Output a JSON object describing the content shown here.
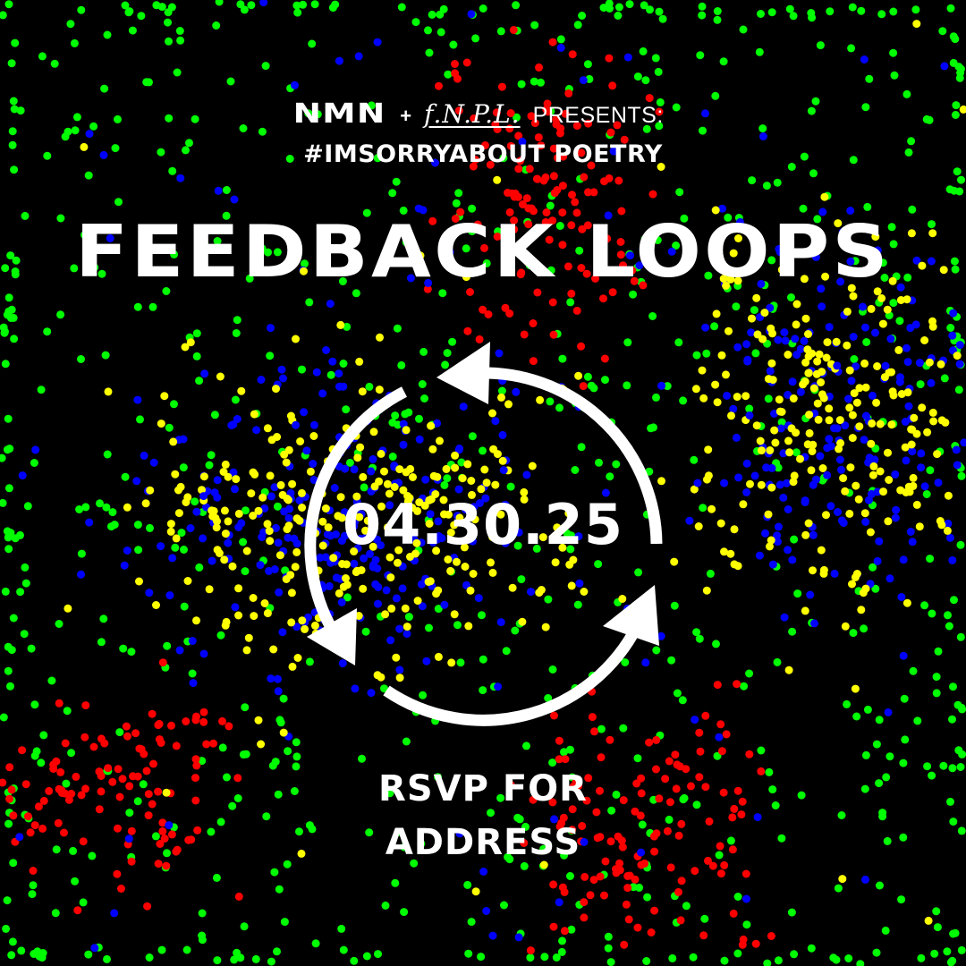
{
  "header": {
    "logo_nmn": "NMN",
    "plus": "+",
    "logo_fnpl": "f.N.P.L.",
    "presents": "PRESENTS:",
    "hashtag": "#IMSORRYABOUT POETRY"
  },
  "event": {
    "title": "FEEDBACK LOOPS",
    "date": "04.30.25",
    "rsvp_line1": "RSVP FOR",
    "rsvp_line2": "ADDRESS"
  },
  "icons": {
    "cycle": "circular-arrows-icon"
  },
  "colors": {
    "background": "#000000",
    "text": "#ffffff",
    "dot_red": "#ff0000",
    "dot_green": "#00ff00",
    "dot_blue": "#0000ff",
    "dot_yellow": "#ffff00"
  }
}
